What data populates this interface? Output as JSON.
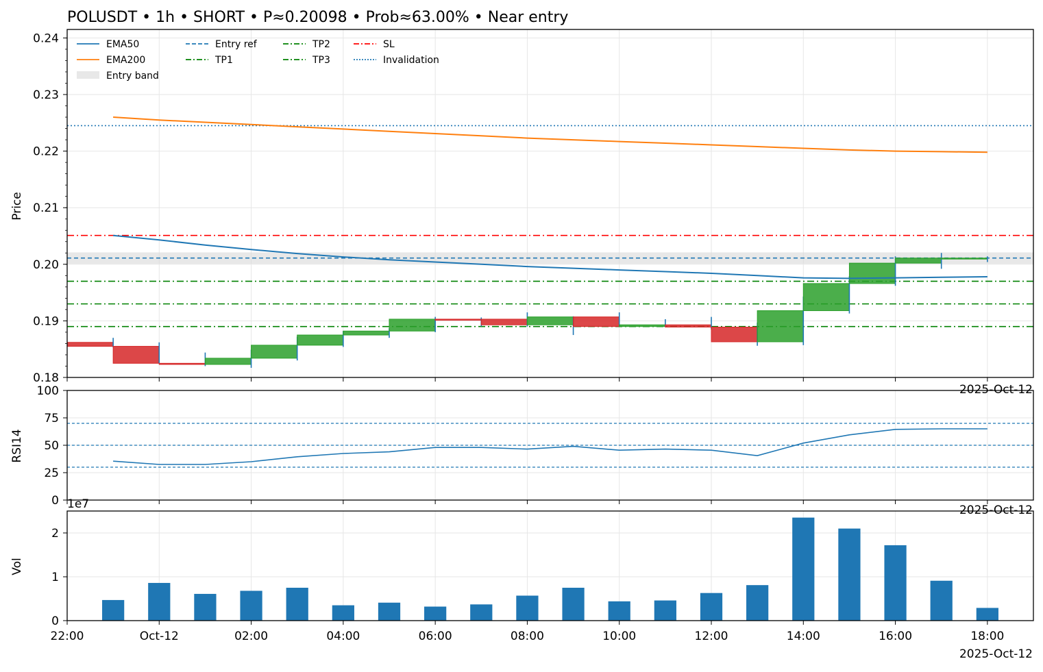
{
  "chart_data": {
    "type": "candlestick",
    "title": "POLUSDT • 1h • SHORT • P≈0.20098 • Prob≈63.00% • Near entry",
    "x_tick_labels": [
      "22:00",
      "Oct-12",
      "02:00",
      "04:00",
      "06:00",
      "08:00",
      "10:00",
      "12:00",
      "14:00",
      "16:00",
      "18:00"
    ],
    "x_ticks_hour": [
      22,
      24,
      26,
      28,
      30,
      32,
      34,
      36,
      38,
      40,
      42
    ],
    "x_range_hour": [
      22,
      43
    ],
    "date_marker": "2025-Oct-12",
    "price_panel": {
      "ylabel": "Price",
      "ylim": [
        0.18,
        0.2415
      ],
      "yticks": [
        0.18,
        0.19,
        0.2,
        0.21,
        0.22,
        0.23,
        0.24
      ],
      "ytick_labels": [
        "0.18",
        "0.19",
        "0.20",
        "0.21",
        "0.22",
        "0.23",
        "0.24"
      ],
      "grid": true,
      "legend_location": "top-left",
      "candles": [
        {
          "hour": 23,
          "open": 0.1862,
          "high": 0.187,
          "low": 0.1853,
          "close": 0.1855
        },
        {
          "hour": 24,
          "open": 0.1855,
          "high": 0.1862,
          "low": 0.1824,
          "close": 0.1825
        },
        {
          "hour": 25,
          "open": 0.1825,
          "high": 0.1844,
          "low": 0.182,
          "close": 0.1823
        },
        {
          "hour": 26,
          "open": 0.1823,
          "high": 0.1849,
          "low": 0.1817,
          "close": 0.1834
        },
        {
          "hour": 27,
          "open": 0.1834,
          "high": 0.1872,
          "low": 0.183,
          "close": 0.1857
        },
        {
          "hour": 28,
          "open": 0.1857,
          "high": 0.1882,
          "low": 0.1854,
          "close": 0.1875
        },
        {
          "hour": 29,
          "open": 0.1875,
          "high": 0.1887,
          "low": 0.187,
          "close": 0.1882
        },
        {
          "hour": 30,
          "open": 0.1882,
          "high": 0.1907,
          "low": 0.188,
          "close": 0.1903
        },
        {
          "hour": 31,
          "open": 0.1903,
          "high": 0.1906,
          "low": 0.189,
          "close": 0.1902
        },
        {
          "hour": 32,
          "open": 0.1903,
          "high": 0.1915,
          "low": 0.189,
          "close": 0.1893
        },
        {
          "hour": 33,
          "open": 0.1893,
          "high": 0.1908,
          "low": 0.1875,
          "close": 0.1907
        },
        {
          "hour": 34,
          "open": 0.1907,
          "high": 0.1915,
          "low": 0.189,
          "close": 0.189
        },
        {
          "hour": 35,
          "open": 0.189,
          "high": 0.1903,
          "low": 0.1889,
          "close": 0.1893
        },
        {
          "hour": 36,
          "open": 0.1893,
          "high": 0.1907,
          "low": 0.1885,
          "close": 0.1889
        },
        {
          "hour": 37,
          "open": 0.1889,
          "high": 0.1897,
          "low": 0.1856,
          "close": 0.1863
        },
        {
          "hour": 38,
          "open": 0.1863,
          "high": 0.1943,
          "low": 0.1857,
          "close": 0.1918
        },
        {
          "hour": 39,
          "open": 0.1918,
          "high": 0.1979,
          "low": 0.1913,
          "close": 0.1966
        },
        {
          "hour": 40,
          "open": 0.1966,
          "high": 0.2014,
          "low": 0.1962,
          "close": 0.2002
        },
        {
          "hour": 41,
          "open": 0.2002,
          "high": 0.202,
          "low": 0.1992,
          "close": 0.2011
        },
        {
          "hour": 42,
          "open": 0.2011,
          "high": 0.2014,
          "low": 0.2004,
          "close": 0.2011
        }
      ],
      "ema50": [
        0.2051,
        0.2043,
        0.2034,
        0.2026,
        0.2019,
        0.2013,
        0.2008,
        0.2004,
        0.2,
        0.1996,
        0.1993,
        0.199,
        0.1987,
        0.1984,
        0.198,
        0.1976,
        0.1975,
        0.1976,
        0.1977,
        0.1978
      ],
      "ema200": [
        0.226,
        0.2255,
        0.2251,
        0.2247,
        0.2243,
        0.2239,
        0.2235,
        0.2231,
        0.2227,
        0.2223,
        0.222,
        0.2217,
        0.2214,
        0.2211,
        0.2208,
        0.2205,
        0.2202,
        0.22,
        0.2199,
        0.2198
      ],
      "entry_band": [
        0.2001,
        0.2021
      ],
      "entry_ref": 0.2011,
      "sl": 0.2051,
      "tp1": 0.197,
      "tp2": 0.193,
      "tp3": 0.189,
      "invalidation": 0.2245,
      "legend": {
        "ema50": "EMA50",
        "ema200": "EMA200",
        "entry_band": "Entry band",
        "entry_ref": "Entry ref",
        "tp1": "TP1",
        "tp2": "TP2",
        "tp3": "TP3",
        "sl": "SL",
        "invalidation": "Invalidation"
      }
    },
    "rsi_panel": {
      "ylabel": "RSI14",
      "ylim": [
        0,
        100
      ],
      "yticks": [
        0,
        25,
        50,
        75,
        100
      ],
      "ytick_labels": [
        "0",
        "25",
        "50",
        "75",
        "100"
      ],
      "levels": [
        30,
        50,
        70
      ],
      "values": [
        35.5,
        32.5,
        32.5,
        35.0,
        39.5,
        42.5,
        44.0,
        48.0,
        48.0,
        46.5,
        49.0,
        45.5,
        46.5,
        45.5,
        40.5,
        52.0,
        59.5,
        64.5,
        65.0,
        65.0
      ]
    },
    "volume_panel": {
      "ylabel": "Vol",
      "ylim": [
        0,
        25000000
      ],
      "yticks": [
        0,
        10000000,
        20000000
      ],
      "ytick_labels": [
        "0",
        "1",
        "2"
      ],
      "scale_label": "1e7",
      "values": [
        4700000,
        8600000,
        6100000,
        6800000,
        7500000,
        3500000,
        4100000,
        3200000,
        3700000,
        5700000,
        7500000,
        4400000,
        4600000,
        6300000,
        8100000,
        23500000,
        21000000,
        17200000,
        9100000,
        2900000
      ]
    },
    "colors": {
      "up": "#2ca02c",
      "down": "#d62728",
      "wick": "#1f77b4",
      "ema50": "#1f77b4",
      "ema200": "#ff7f0e",
      "entry_ref": "#1f77b4",
      "tp": "#008000",
      "sl": "#ff0000",
      "invalidation": "#1f77b4",
      "volume": "#1f77b4",
      "rsi": "#1f77b4",
      "band": "#d9d9d9",
      "grid": "#e6e6e6"
    }
  }
}
